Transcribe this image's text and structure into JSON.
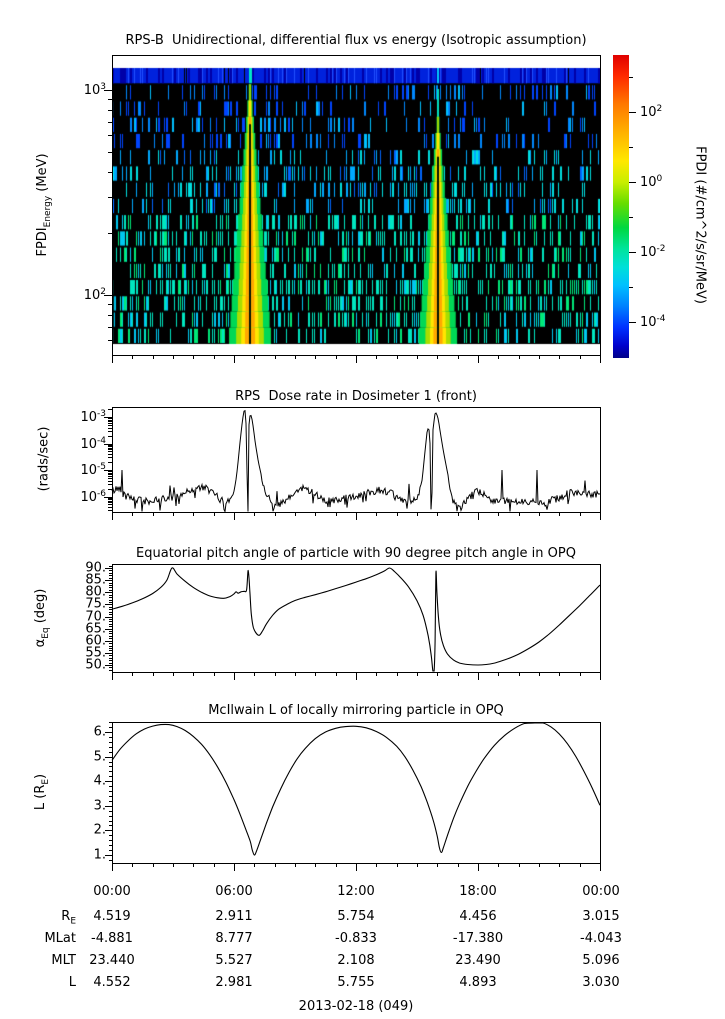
{
  "figure": {
    "background": "#ffffff",
    "foreground": "#000000",
    "date_label": "2013-02-18 (049)"
  },
  "chart_data": [
    {
      "id": "spectrogram",
      "type": "heatmap",
      "title": "RPS-B  Unidirectional, differential flux vs energy (Isotropic assumption)",
      "ylabel": "FPDI_Energy (MeV)",
      "ylabel_parts": {
        "main": "FPDI",
        "sub": "Energy",
        "rest": " (MeV)"
      },
      "yscale": "log",
      "ylim_mev": [
        51,
        1480
      ],
      "xlim_hours": [
        0,
        24
      ],
      "y_ticks": [
        {
          "base": "10",
          "exp": "3",
          "value": 1000
        },
        {
          "base": "10",
          "exp": "2",
          "value": 100
        }
      ],
      "background_description": "black (no data) with sparse vertical low-flux samples; blue ~1e-5 flux at high energy, cyan/teal ~1e-3 to 1e-1 at lower energy; continuous blue band in the topmost energy bin",
      "features": [
        {
          "name": "perigee-flux-funnel-1",
          "center_hours": 6.79,
          "apex_energy_mev": 1100,
          "base_halfwidth_hours": 1.03,
          "core_flux": "~1e2 (orange/yellow core at 50-90 MeV)",
          "shape": "funnel widening toward low energy",
          "center_gap": true
        },
        {
          "name": "perigee-flux-funnel-2",
          "center_hours": 16.03,
          "apex_energy_mev": 750,
          "base_halfwidth_hours": 0.94,
          "core_flux": "~1e2 (orange/yellow core at 50-90 MeV)",
          "shape": "funnel widening toward low energy",
          "center_gap": true,
          "thin_spike_to_mev": 1200
        }
      ],
      "colorbar": {
        "label": "FPDI (#/cm^2/s/sr/MeV)",
        "ticks": [
          {
            "base": "10",
            "exp": "2"
          },
          {
            "base": "10",
            "exp": "0"
          },
          {
            "base": "10",
            "exp": "-2"
          },
          {
            "base": "10",
            "exp": "-4"
          }
        ],
        "range_exponents": [
          -5,
          3.6
        ],
        "colors_top_to_bottom": [
          "#e00000",
          "#ff7700",
          "#ffe800",
          "#66dd00",
          "#00d840",
          "#00e0d8",
          "#00c0ff",
          "#0080ff",
          "#0030ff",
          "#000088"
        ]
      }
    },
    {
      "id": "dose_rate",
      "type": "line",
      "title": "RPS  Dose rate in Dosimeter 1 (front)",
      "ylabel": "(rads/sec)",
      "yscale": "log",
      "ylim": [
        3e-07,
        0.0025
      ],
      "y_ticks": [
        {
          "base": "10",
          "exp": "-3",
          "value": 0.001
        },
        {
          "base": "10",
          "exp": "-4",
          "value": 0.0001
        },
        {
          "base": "10",
          "exp": "-5",
          "value": 1e-05
        },
        {
          "base": "10",
          "exp": "-6",
          "value": 1e-06
        }
      ],
      "noise_decades": 0.14,
      "keypoints_h_v": [
        [
          0,
          1.5e-06
        ],
        [
          0.2,
          1.9e-06
        ],
        [
          0.4,
          2.1e-06
        ],
        [
          0.7,
          1.5e-06
        ],
        [
          1.0,
          9e-07
        ],
        [
          1.4,
          7e-07
        ],
        [
          1.8,
          6.5e-07
        ],
        [
          2.2,
          7e-07
        ],
        [
          2.7,
          8.5e-07
        ],
        [
          3.2,
          1.1e-06
        ],
        [
          3.7,
          1.5e-06
        ],
        [
          4.1,
          2e-06
        ],
        [
          4.45,
          2.2e-06
        ],
        [
          4.8,
          1.7e-06
        ],
        [
          5.1,
          1.1e-06
        ],
        [
          5.4,
          7e-07
        ],
        [
          5.65,
          6e-07
        ],
        [
          5.85,
          9e-07
        ],
        [
          6.0,
          1.6e-06
        ],
        [
          6.1,
          4e-06
        ],
        [
          6.2,
          2e-05
        ],
        [
          6.3,
          0.00012
        ],
        [
          6.42,
          0.0008
        ],
        [
          6.5,
          0.0018
        ],
        [
          6.56,
          0.0017
        ],
        [
          6.62,
          0.0002
        ],
        [
          6.66,
          3e-07
        ],
        [
          6.7,
          3e-07
        ],
        [
          6.74,
          0.0008
        ],
        [
          6.8,
          0.0012
        ],
        [
          6.86,
          0.0011
        ],
        [
          6.95,
          0.0004
        ],
        [
          7.05,
          0.0001
        ],
        [
          7.2,
          2e-05
        ],
        [
          7.4,
          4e-06
        ],
        [
          7.6,
          1.3e-06
        ],
        [
          7.8,
          6e-07
        ],
        [
          8.0,
          4.5e-07
        ],
        [
          8.3,
          5e-07
        ],
        [
          8.6,
          7e-07
        ],
        [
          8.9,
          1.2e-06
        ],
        [
          9.2,
          1.8e-06
        ],
        [
          9.45,
          2.1e-06
        ],
        [
          9.8,
          1.6e-06
        ],
        [
          10.1,
          1.1e-06
        ],
        [
          10.5,
          7.5e-07
        ],
        [
          10.9,
          7e-07
        ],
        [
          11.3,
          8e-07
        ],
        [
          11.8,
          9.5e-07
        ],
        [
          12.2,
          1.1e-06
        ],
        [
          12.7,
          1.5e-06
        ],
        [
          13.1,
          1.8e-06
        ],
        [
          13.5,
          1.6e-06
        ],
        [
          13.9,
          1.1e-06
        ],
        [
          14.3,
          7.5e-07
        ],
        [
          14.7,
          6e-07
        ],
        [
          14.95,
          7e-07
        ],
        [
          15.1,
          1.1e-06
        ],
        [
          15.25,
          4e-06
        ],
        [
          15.38,
          4e-05
        ],
        [
          15.5,
          0.0003
        ],
        [
          15.58,
          0.00042
        ],
        [
          15.64,
          0.0001
        ],
        [
          15.68,
          3e-07
        ],
        [
          15.72,
          3e-07
        ],
        [
          15.78,
          0.0003
        ],
        [
          15.88,
          0.0013
        ],
        [
          15.95,
          0.00145
        ],
        [
          16.05,
          0.0008
        ],
        [
          16.15,
          0.00025
        ],
        [
          16.3,
          5e-05
        ],
        [
          16.5,
          8e-06
        ],
        [
          16.7,
          1.5e-06
        ],
        [
          16.9,
          5e-07
        ],
        [
          17.1,
          4e-07
        ],
        [
          17.4,
          6e-07
        ],
        [
          17.7,
          1.1e-06
        ],
        [
          17.95,
          1.5e-06
        ],
        [
          18.2,
          1.3e-06
        ],
        [
          18.5,
          9e-07
        ],
        [
          18.9,
          7e-07
        ],
        [
          19.3,
          6.5e-07
        ],
        [
          19.8,
          6e-07
        ],
        [
          20.3,
          6.5e-07
        ],
        [
          20.8,
          7e-07
        ],
        [
          21.3,
          6e-07
        ],
        [
          21.8,
          8e-07
        ],
        [
          22.2,
          1.1e-06
        ],
        [
          22.6,
          1.4e-06
        ],
        [
          23.0,
          1.5e-06
        ],
        [
          23.4,
          1.3e-06
        ],
        [
          23.7,
          1.1e-06
        ],
        [
          24,
          1.4e-06
        ]
      ],
      "spikes_h_v": [
        [
          0.5,
          1e-05
        ],
        [
          2.85,
          2.6e-06
        ],
        [
          3.05,
          2.2e-06
        ],
        [
          8.1,
          1.6e-06
        ],
        [
          14.6,
          3e-06
        ],
        [
          19.2,
          1e-05
        ],
        [
          20.9,
          1e-05
        ],
        [
          23.25,
          4e-06
        ]
      ],
      "notches_h_v": [
        [
          1.15,
          3.5e-07
        ],
        [
          2.35,
          3e-07
        ],
        [
          5.5,
          3.2e-07
        ],
        [
          7.9,
          2.8e-07
        ],
        [
          10.6,
          4e-07
        ],
        [
          14.5,
          3.5e-07
        ],
        [
          16.95,
          2.8e-07
        ],
        [
          17.15,
          3e-07
        ],
        [
          21.4,
          3.2e-07
        ]
      ]
    },
    {
      "id": "pitch_angle",
      "type": "line",
      "title": "Equatorial pitch angle of particle with 90 degree pitch angle in OPQ",
      "ylabel": "α_Eq (deg)",
      "ylabel_parts": {
        "main": "α",
        "sub": "Eq",
        "rest": " (deg)"
      },
      "ylim": [
        47,
        92
      ],
      "y_tick_labels": [
        "90.",
        "85.",
        "80.",
        "75.",
        "70.",
        "65.",
        "60.",
        "55.",
        "50."
      ],
      "y_tick_values": [
        90,
        85,
        80,
        75,
        70,
        65,
        60,
        55,
        50
      ],
      "points_h_deg": [
        [
          0,
          73
        ],
        [
          0.5,
          74.2
        ],
        [
          1,
          75.6
        ],
        [
          1.5,
          77.3
        ],
        [
          2,
          79.5
        ],
        [
          2.4,
          82
        ],
        [
          2.7,
          85
        ],
        [
          2.95,
          90
        ],
        [
          3.2,
          87.5
        ],
        [
          3.6,
          84.5
        ],
        [
          4.0,
          82
        ],
        [
          4.4,
          80
        ],
        [
          4.8,
          78.5
        ],
        [
          5.2,
          77.7
        ],
        [
          5.5,
          77.5
        ],
        [
          5.8,
          78.2
        ],
        [
          6.0,
          79.3
        ],
        [
          6.1,
          80.2
        ],
        [
          6.2,
          79.6
        ],
        [
          6.35,
          80.2
        ],
        [
          6.5,
          80.4
        ],
        [
          6.62,
          81
        ],
        [
          6.7,
          89
        ],
        [
          6.78,
          80
        ],
        [
          6.85,
          71
        ],
        [
          6.95,
          65.5
        ],
        [
          7.1,
          63
        ],
        [
          7.25,
          62.3
        ],
        [
          7.4,
          64
        ],
        [
          7.6,
          67
        ],
        [
          7.9,
          70.5
        ],
        [
          8.2,
          73
        ],
        [
          8.6,
          75
        ],
        [
          9.0,
          76.6
        ],
        [
          9.5,
          77.9
        ],
        [
          10,
          79
        ],
        [
          10.5,
          80.2
        ],
        [
          11,
          81.5
        ],
        [
          11.5,
          82.8
        ],
        [
          12,
          84.2
        ],
        [
          12.5,
          85.6
        ],
        [
          13,
          87.2
        ],
        [
          13.4,
          88.8
        ],
        [
          13.65,
          90
        ],
        [
          13.9,
          88.5
        ],
        [
          14.2,
          86
        ],
        [
          14.6,
          82
        ],
        [
          15.0,
          76.5
        ],
        [
          15.3,
          70.5
        ],
        [
          15.55,
          62
        ],
        [
          15.7,
          54
        ],
        [
          15.78,
          47.5
        ],
        [
          15.84,
          47.5
        ],
        [
          15.89,
          60
        ],
        [
          15.93,
          88
        ],
        [
          15.98,
          80
        ],
        [
          16.05,
          70
        ],
        [
          16.15,
          63
        ],
        [
          16.3,
          58
        ],
        [
          16.5,
          54.5
        ],
        [
          16.8,
          52
        ],
        [
          17.1,
          50.8
        ],
        [
          17.5,
          50.2
        ],
        [
          18,
          50
        ],
        [
          18.4,
          50.2
        ],
        [
          18.8,
          50.8
        ],
        [
          19.2,
          51.8
        ],
        [
          19.6,
          53
        ],
        [
          20,
          54.5
        ],
        [
          20.5,
          56.8
        ],
        [
          21,
          59.5
        ],
        [
          21.5,
          62.8
        ],
        [
          22,
          66.5
        ],
        [
          22.5,
          70.5
        ],
        [
          23,
          74.5
        ],
        [
          23.5,
          78.7
        ],
        [
          24,
          83
        ]
      ]
    },
    {
      "id": "mcilwain_l",
      "type": "line",
      "title": "McIlwain L of locally mirroring particle in OPQ",
      "ylabel": "L (R_E)",
      "ylabel_parts": {
        "main": "L (R",
        "sub": "E",
        "rest": ")"
      },
      "ylim": [
        0.67,
        6.45
      ],
      "y_tick_labels": [
        "6.",
        "5.",
        "4.",
        "3.",
        "2.",
        "1."
      ],
      "y_tick_values": [
        6,
        5,
        4,
        3,
        2,
        1
      ],
      "points_h_l": [
        [
          0,
          4.85
        ],
        [
          0.4,
          5.3
        ],
        [
          0.8,
          5.65
        ],
        [
          1.2,
          5.93
        ],
        [
          1.6,
          6.12
        ],
        [
          2.0,
          6.24
        ],
        [
          2.4,
          6.3
        ],
        [
          2.8,
          6.3
        ],
        [
          3.2,
          6.22
        ],
        [
          3.6,
          6.06
        ],
        [
          4.0,
          5.82
        ],
        [
          4.4,
          5.5
        ],
        [
          4.8,
          5.08
        ],
        [
          5.2,
          4.57
        ],
        [
          5.6,
          3.96
        ],
        [
          6.0,
          3.25
        ],
        [
          6.3,
          2.65
        ],
        [
          6.6,
          2.0
        ],
        [
          6.8,
          1.55
        ],
        [
          6.9,
          1.2
        ],
        [
          7.0,
          1.0
        ],
        [
          7.1,
          1.15
        ],
        [
          7.3,
          1.6
        ],
        [
          7.6,
          2.3
        ],
        [
          7.9,
          2.95
        ],
        [
          8.3,
          3.7
        ],
        [
          8.7,
          4.35
        ],
        [
          9.1,
          4.9
        ],
        [
          9.5,
          5.33
        ],
        [
          10.0,
          5.73
        ],
        [
          10.5,
          6.0
        ],
        [
          11.0,
          6.15
        ],
        [
          11.5,
          6.22
        ],
        [
          12.0,
          6.23
        ],
        [
          12.5,
          6.17
        ],
        [
          13.0,
          6.02
        ],
        [
          13.5,
          5.78
        ],
        [
          14.0,
          5.42
        ],
        [
          14.4,
          5.0
        ],
        [
          14.8,
          4.45
        ],
        [
          15.2,
          3.78
        ],
        [
          15.5,
          3.15
        ],
        [
          15.8,
          2.4
        ],
        [
          16.0,
          1.75
        ],
        [
          16.1,
          1.3
        ],
        [
          16.2,
          1.1
        ],
        [
          16.3,
          1.3
        ],
        [
          16.5,
          1.8
        ],
        [
          16.8,
          2.5
        ],
        [
          17.1,
          3.1
        ],
        [
          17.5,
          3.8
        ],
        [
          17.9,
          4.4
        ],
        [
          18.3,
          4.92
        ],
        [
          18.8,
          5.45
        ],
        [
          19.3,
          5.85
        ],
        [
          19.8,
          6.15
        ],
        [
          20.3,
          6.35
        ],
        [
          20.8,
          6.43
        ],
        [
          21.2,
          6.38
        ],
        [
          21.6,
          6.2
        ],
        [
          22.0,
          5.92
        ],
        [
          22.4,
          5.52
        ],
        [
          22.8,
          5.02
        ],
        [
          23.2,
          4.42
        ],
        [
          23.6,
          3.75
        ],
        [
          24,
          3.02
        ]
      ]
    }
  ],
  "bottom_axis": {
    "time_ticks": [
      "00:00",
      "06:00",
      "12:00",
      "18:00",
      "00:00"
    ],
    "minor_tick_interval_hours": 1,
    "rows": [
      {
        "label_main": "R",
        "label_sub": "E",
        "values": [
          "4.519",
          "2.911",
          "5.754",
          "4.456",
          "3.015"
        ]
      },
      {
        "label_main": "MLat",
        "label_sub": "",
        "values": [
          "-4.881",
          "8.777",
          "-0.833",
          "-17.380",
          "-4.043"
        ]
      },
      {
        "label_main": "MLT",
        "label_sub": "",
        "values": [
          "23.440",
          "5.527",
          "2.108",
          "23.490",
          "5.096"
        ]
      },
      {
        "label_main": "L",
        "label_sub": "",
        "values": [
          "4.552",
          "2.981",
          "5.755",
          "4.893",
          "3.030"
        ]
      }
    ],
    "date_label": "2013-02-18 (049)"
  }
}
